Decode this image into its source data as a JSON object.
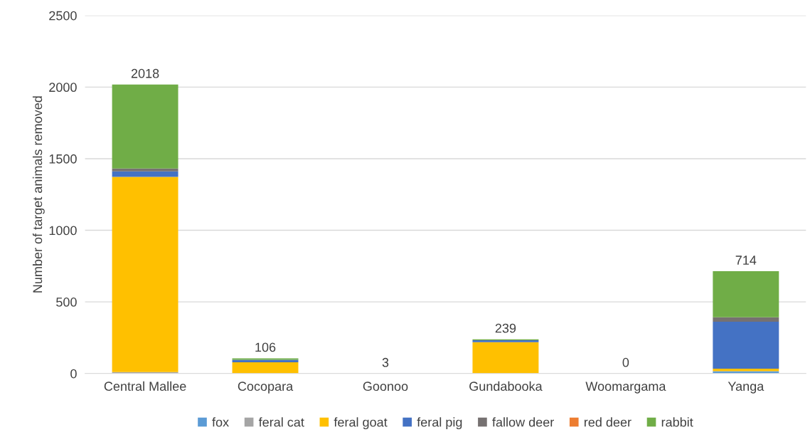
{
  "chart_data": {
    "type": "bar",
    "stacked": true,
    "ylabel": "Number of target animals removed",
    "categories": [
      "Central Mallee",
      "Cocopara",
      "Goonoo",
      "Gundabooka",
      "Woomargama",
      "Yanga"
    ],
    "series": [
      {
        "name": "fox",
        "color": "#5b9bd5",
        "values": [
          0,
          0,
          null,
          0,
          0,
          16
        ]
      },
      {
        "name": "feral cat",
        "color": "#a5a5a5",
        "values": [
          10,
          0,
          0,
          0,
          0,
          0
        ]
      },
      {
        "name": "feral goat",
        "color": "#ffc000",
        "values": [
          1363,
          78,
          0,
          219,
          0,
          17
        ]
      },
      {
        "name": "feral pig",
        "color": "#4472c4",
        "values": [
          38,
          18,
          0,
          13,
          0,
          329
        ]
      },
      {
        "name": "fallow deer",
        "color": "#767171",
        "values": [
          20,
          0,
          0,
          0,
          0,
          30
        ]
      },
      {
        "name": "red deer",
        "color": "#ed7d31",
        "values": [
          0,
          0,
          0,
          0,
          0,
          0
        ]
      },
      {
        "name": "rabbit",
        "color": "#70ad47",
        "values": [
          587,
          10,
          0,
          7,
          0,
          322
        ]
      }
    ],
    "totals": [
      "2018",
      "106",
      "3",
      "239",
      "0",
      "714"
    ],
    "ylim": [
      0,
      2500
    ],
    "yticks": [
      0,
      500,
      1000,
      1500,
      2000,
      2500
    ],
    "grid": "y",
    "legend": "bottom"
  }
}
